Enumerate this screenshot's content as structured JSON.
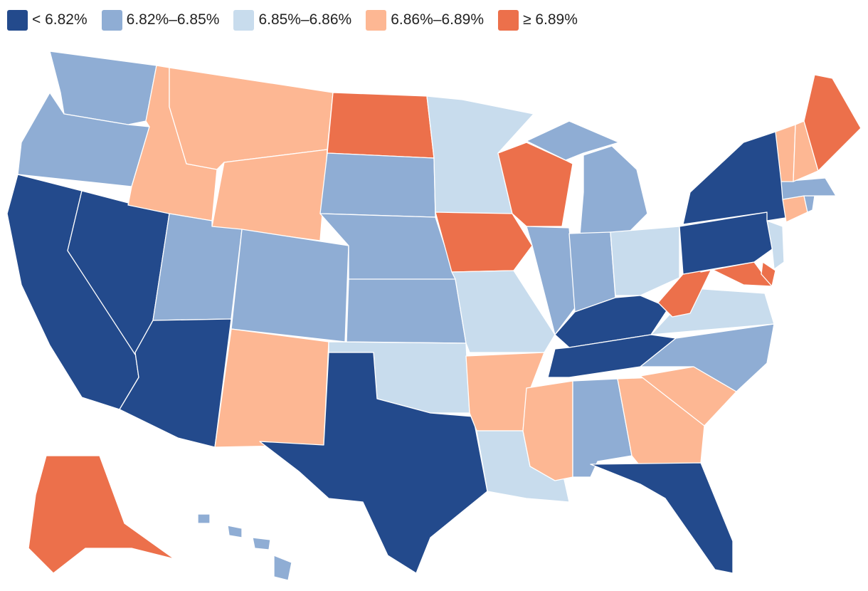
{
  "legend": [
    {
      "label": "< 6.82%",
      "color": "#234a8c"
    },
    {
      "label": "6.82%–6.85%",
      "color": "#8fadd4"
    },
    {
      "label": "6.85%–6.86%",
      "color": "#c8dced"
    },
    {
      "label": "6.86%–6.89%",
      "color": "#fdb793"
    },
    {
      "label": "≥ 6.89%",
      "color": "#ec704b"
    }
  ],
  "states": [
    {
      "state": "WA",
      "bin": 1
    },
    {
      "state": "OR",
      "bin": 1
    },
    {
      "state": "CA",
      "bin": 0
    },
    {
      "state": "NV",
      "bin": 0
    },
    {
      "state": "ID",
      "bin": 3
    },
    {
      "state": "MT",
      "bin": 3
    },
    {
      "state": "WY",
      "bin": 3
    },
    {
      "state": "UT",
      "bin": 1
    },
    {
      "state": "AZ",
      "bin": 0
    },
    {
      "state": "CO",
      "bin": 1
    },
    {
      "state": "NM",
      "bin": 3
    },
    {
      "state": "ND",
      "bin": 4
    },
    {
      "state": "SD",
      "bin": 1
    },
    {
      "state": "NE",
      "bin": 1
    },
    {
      "state": "KS",
      "bin": 1
    },
    {
      "state": "OK",
      "bin": 2
    },
    {
      "state": "TX",
      "bin": 0
    },
    {
      "state": "MN",
      "bin": 2
    },
    {
      "state": "IA",
      "bin": 4
    },
    {
      "state": "MO",
      "bin": 2
    },
    {
      "state": "AR",
      "bin": 3
    },
    {
      "state": "LA",
      "bin": 2
    },
    {
      "state": "WI",
      "bin": 4
    },
    {
      "state": "IL",
      "bin": 1
    },
    {
      "state": "MI",
      "bin": 1
    },
    {
      "state": "IN",
      "bin": 1
    },
    {
      "state": "OH",
      "bin": 2
    },
    {
      "state": "KY",
      "bin": 0
    },
    {
      "state": "TN",
      "bin": 0
    },
    {
      "state": "MS",
      "bin": 3
    },
    {
      "state": "AL",
      "bin": 1
    },
    {
      "state": "GA",
      "bin": 3
    },
    {
      "state": "FL",
      "bin": 0
    },
    {
      "state": "SC",
      "bin": 3
    },
    {
      "state": "NC",
      "bin": 1
    },
    {
      "state": "VA",
      "bin": 2
    },
    {
      "state": "WV",
      "bin": 4
    },
    {
      "state": "MD",
      "bin": 4
    },
    {
      "state": "DE",
      "bin": 4
    },
    {
      "state": "PA",
      "bin": 0
    },
    {
      "state": "NJ",
      "bin": 2
    },
    {
      "state": "NY",
      "bin": 0
    },
    {
      "state": "CT",
      "bin": 3
    },
    {
      "state": "RI",
      "bin": 1
    },
    {
      "state": "MA",
      "bin": 1
    },
    {
      "state": "VT",
      "bin": 3
    },
    {
      "state": "NH",
      "bin": 3
    },
    {
      "state": "ME",
      "bin": 4
    },
    {
      "state": "AK",
      "bin": 4
    },
    {
      "state": "HI",
      "bin": 1
    }
  ]
}
